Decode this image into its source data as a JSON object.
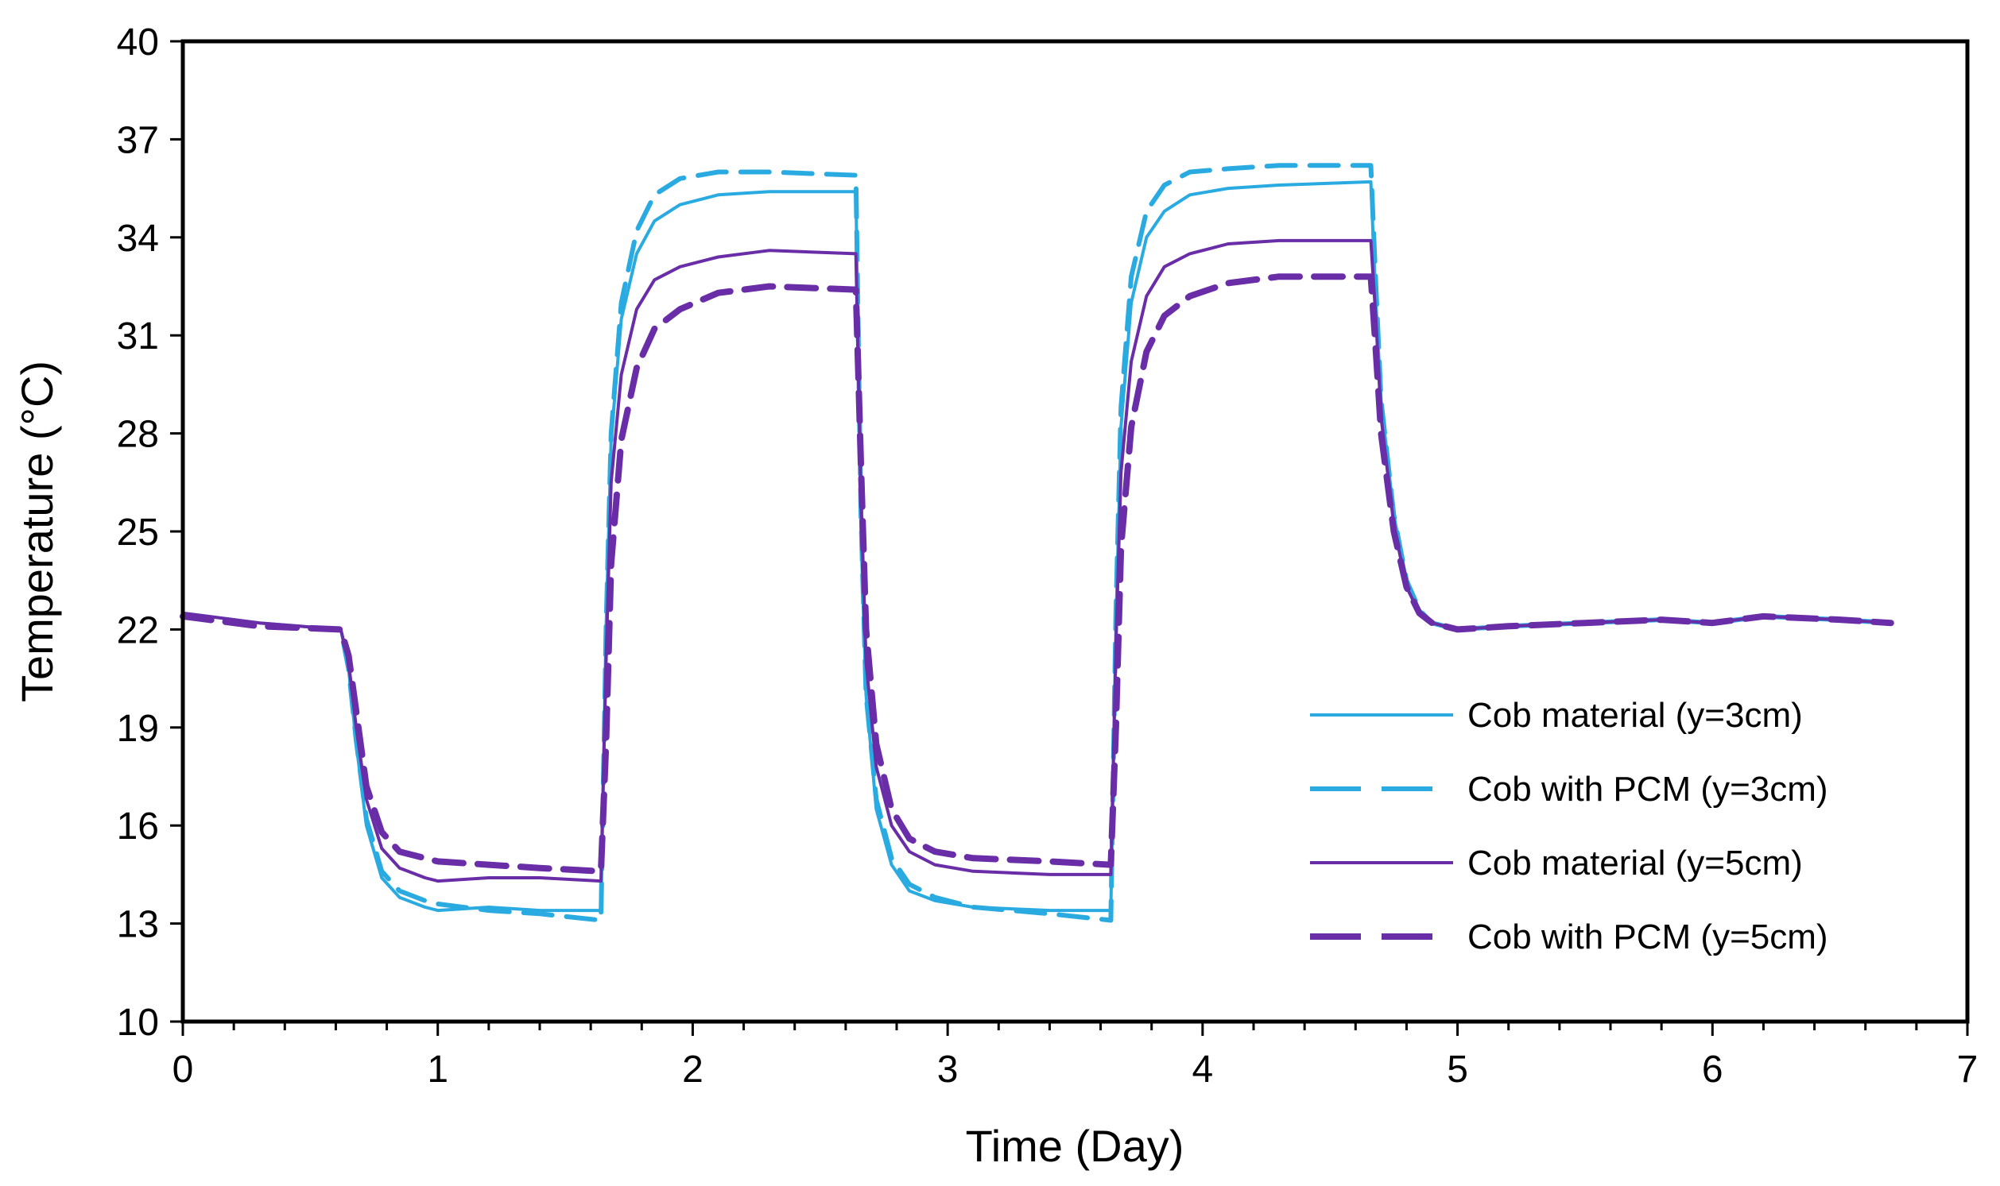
{
  "chart_data": {
    "type": "line",
    "title": "",
    "xlabel": "Time (Day)",
    "ylabel": "Temperature (°C)",
    "xlim": [
      0,
      7
    ],
    "ylim": [
      10,
      40
    ],
    "xticks": [
      "0",
      "1",
      "2",
      "3",
      "4",
      "5",
      "6",
      "7"
    ],
    "yticks": [
      "10",
      "13",
      "16",
      "19",
      "22",
      "25",
      "28",
      "31",
      "34",
      "37",
      "40"
    ],
    "grid": false,
    "legend_position": "bottom-right",
    "series": [
      {
        "name": "Cob material (y=3cm)",
        "color": "#29ABE2",
        "style": "solid",
        "x": [
          0,
          0.3,
          0.62,
          0.65,
          0.68,
          0.72,
          0.78,
          0.85,
          0.95,
          1.0,
          1.2,
          1.4,
          1.64,
          1.66,
          1.68,
          1.72,
          1.78,
          1.85,
          1.95,
          2.1,
          2.3,
          2.64,
          2.66,
          2.68,
          2.72,
          2.78,
          2.85,
          2.95,
          3.1,
          3.4,
          3.64,
          3.66,
          3.68,
          3.72,
          3.78,
          3.85,
          3.95,
          4.1,
          4.3,
          4.66,
          4.68,
          4.7,
          4.75,
          4.8,
          4.85,
          4.9,
          4.95,
          5.0,
          5.2,
          5.5,
          5.8,
          6.0,
          6.2,
          6.5,
          6.7
        ],
        "values": [
          22.5,
          22.2,
          22.0,
          20.8,
          18.5,
          16.0,
          14.4,
          13.8,
          13.5,
          13.4,
          13.5,
          13.4,
          13.4,
          22.0,
          27.8,
          31.5,
          33.5,
          34.5,
          35.0,
          35.3,
          35.4,
          35.4,
          25.0,
          20.0,
          16.5,
          14.8,
          14.0,
          13.7,
          13.5,
          13.4,
          13.4,
          22.0,
          28.2,
          32.0,
          34.0,
          34.8,
          35.3,
          35.5,
          35.6,
          35.7,
          32.0,
          29.0,
          25.5,
          23.5,
          22.6,
          22.2,
          22.1,
          22.0,
          22.1,
          22.2,
          22.3,
          22.2,
          22.4,
          22.3,
          22.2
        ]
      },
      {
        "name": "Cob with PCM (y=3cm)",
        "color": "#29ABE2",
        "style": "dashed",
        "x": [
          0,
          0.3,
          0.62,
          0.65,
          0.68,
          0.72,
          0.78,
          0.85,
          0.95,
          1.0,
          1.2,
          1.4,
          1.64,
          1.66,
          1.68,
          1.72,
          1.78,
          1.85,
          1.95,
          2.1,
          2.3,
          2.64,
          2.66,
          2.68,
          2.72,
          2.78,
          2.85,
          2.95,
          3.1,
          3.4,
          3.64,
          3.66,
          3.68,
          3.72,
          3.78,
          3.85,
          3.95,
          4.1,
          4.3,
          4.66,
          4.68,
          4.7,
          4.75,
          4.8,
          4.85,
          4.9,
          4.95,
          5.0,
          5.2,
          5.5,
          5.8,
          6.0,
          6.2,
          6.5,
          6.7
        ],
        "values": [
          22.4,
          22.1,
          22.0,
          20.8,
          18.6,
          16.2,
          14.6,
          14.0,
          13.7,
          13.6,
          13.4,
          13.3,
          13.1,
          22.0,
          28.0,
          32.0,
          34.2,
          35.3,
          35.8,
          36.0,
          36.0,
          35.9,
          25.5,
          20.0,
          16.8,
          15.0,
          14.2,
          13.8,
          13.5,
          13.3,
          13.1,
          22.5,
          28.8,
          32.8,
          34.8,
          35.6,
          36.0,
          36.1,
          36.2,
          36.2,
          32.5,
          29.0,
          25.5,
          23.5,
          22.6,
          22.2,
          22.1,
          22.0,
          22.1,
          22.2,
          22.3,
          22.2,
          22.4,
          22.3,
          22.2
        ]
      },
      {
        "name": "Cob material (y=5cm)",
        "color": "#6A2DA8",
        "style": "solid",
        "x": [
          0,
          0.3,
          0.62,
          0.65,
          0.68,
          0.72,
          0.78,
          0.85,
          0.95,
          1.0,
          1.2,
          1.4,
          1.64,
          1.66,
          1.68,
          1.72,
          1.78,
          1.85,
          1.95,
          2.1,
          2.3,
          2.64,
          2.66,
          2.68,
          2.72,
          2.78,
          2.85,
          2.95,
          3.1,
          3.4,
          3.64,
          3.66,
          3.68,
          3.72,
          3.78,
          3.85,
          3.95,
          4.1,
          4.3,
          4.66,
          4.68,
          4.7,
          4.75,
          4.8,
          4.85,
          4.9,
          4.95,
          5.0,
          5.2,
          5.5,
          5.8,
          6.0,
          6.2,
          6.5,
          6.7
        ],
        "values": [
          22.5,
          22.2,
          22.0,
          21.0,
          19.0,
          16.8,
          15.3,
          14.7,
          14.4,
          14.3,
          14.4,
          14.4,
          14.3,
          21.0,
          26.5,
          29.8,
          31.8,
          32.7,
          33.1,
          33.4,
          33.6,
          33.5,
          26.0,
          21.0,
          17.8,
          16.0,
          15.2,
          14.8,
          14.6,
          14.5,
          14.5,
          21.5,
          26.8,
          30.2,
          32.2,
          33.1,
          33.5,
          33.8,
          33.9,
          33.9,
          31.5,
          28.5,
          25.2,
          23.3,
          22.5,
          22.2,
          22.1,
          22.0,
          22.1,
          22.2,
          22.3,
          22.2,
          22.4,
          22.3,
          22.2
        ]
      },
      {
        "name": "Cob with PCM (y=5cm)",
        "color": "#6A2DA8",
        "style": "dashed",
        "x": [
          0,
          0.3,
          0.62,
          0.65,
          0.68,
          0.72,
          0.78,
          0.85,
          0.95,
          1.0,
          1.2,
          1.4,
          1.64,
          1.66,
          1.68,
          1.72,
          1.78,
          1.85,
          1.95,
          2.1,
          2.3,
          2.64,
          2.66,
          2.68,
          2.72,
          2.78,
          2.85,
          2.95,
          3.1,
          3.4,
          3.64,
          3.66,
          3.68,
          3.72,
          3.78,
          3.85,
          3.95,
          4.1,
          4.3,
          4.66,
          4.68,
          4.7,
          4.75,
          4.8,
          4.85,
          4.9,
          4.95,
          5.0,
          5.2,
          5.5,
          5.8,
          6.0,
          6.2,
          6.5,
          6.7
        ],
        "values": [
          22.4,
          22.1,
          22.0,
          21.2,
          19.5,
          17.2,
          15.8,
          15.2,
          15.0,
          14.9,
          14.8,
          14.7,
          14.6,
          18.5,
          24.0,
          27.8,
          30.0,
          31.2,
          31.8,
          32.3,
          32.5,
          32.4,
          27.0,
          22.0,
          18.5,
          16.5,
          15.6,
          15.2,
          15.0,
          14.9,
          14.8,
          19.0,
          24.5,
          28.2,
          30.5,
          31.6,
          32.2,
          32.6,
          32.8,
          32.8,
          30.5,
          28.0,
          25.0,
          23.3,
          22.5,
          22.2,
          22.1,
          22.0,
          22.1,
          22.2,
          22.3,
          22.2,
          22.4,
          22.3,
          22.2
        ]
      }
    ]
  }
}
